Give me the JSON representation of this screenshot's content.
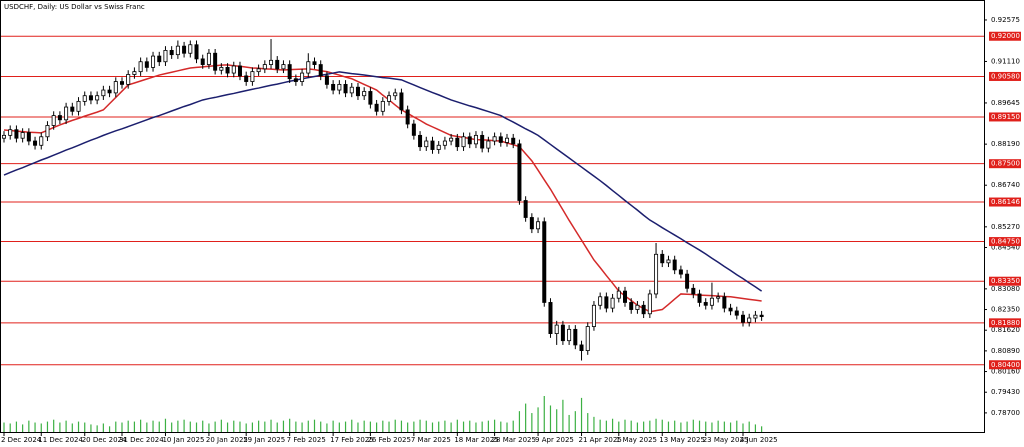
{
  "chart_data": {
    "type": "candlestick",
    "title": "USDCHF, Daily:  US Dollar vs Swiss Franc",
    "up_color": "#ffffff",
    "down_color": "#000000",
    "ylim": [
      0.7799,
      0.9328
    ],
    "yticks": [
      0.92575,
      {
        "value": 0.9111,
        "label": "0.91110"
      },
      0.89645,
      {
        "value": 0.8819,
        "label": "0.88190"
      },
      {
        "value": 0.8674,
        "label": "0.86740"
      },
      {
        "value": 0.8527,
        "label": "0.85270"
      },
      {
        "value": 0.8454,
        "label": "0.84540"
      },
      {
        "value": 0.8308,
        "label": "0.83080"
      },
      {
        "value": 0.8235,
        "label": "0.82350"
      },
      {
        "value": 0.8162,
        "label": "0.81620"
      },
      {
        "value": 0.8089,
        "label": "0.80890"
      },
      {
        "value": 0.8016,
        "label": "0.80160"
      },
      {
        "value": 0.7943,
        "label": "0.79430"
      },
      {
        "value": 0.787,
        "label": "0.78700"
      }
    ],
    "levels": {
      "color": "#e0201b",
      "values": [
        {
          "value": 0.92,
          "label": "0.92000"
        },
        {
          "value": 0.9058,
          "label": "0.90580"
        },
        {
          "value": 0.8915,
          "label": "0.89150"
        },
        {
          "value": 0.875,
          "label": "0.87500"
        },
        {
          "value": 0.86146,
          "label": "0.86146"
        },
        {
          "value": 0.8475,
          "label": "0.84750"
        },
        {
          "value": 0.8335,
          "label": "0.83350"
        },
        {
          "value": 0.8188,
          "label": "0.81880"
        },
        {
          "value": 0.804,
          "label": "0.80400"
        }
      ]
    },
    "categories": [
      "2 Dec 2024",
      null,
      null,
      null,
      null,
      null,
      "11 Dec 2024",
      null,
      null,
      null,
      null,
      null,
      null,
      "20 Dec 2024",
      null,
      null,
      null,
      null,
      null,
      "31 Dec 2024",
      null,
      null,
      null,
      null,
      null,
      null,
      "10 Jan 2025",
      null,
      null,
      null,
      null,
      null,
      null,
      "20 Jan 2025",
      null,
      null,
      null,
      null,
      null,
      "29 Jan 2025",
      null,
      null,
      null,
      null,
      null,
      null,
      "7 Feb 2025",
      null,
      null,
      null,
      null,
      null,
      null,
      "17 Feb 2025",
      null,
      null,
      null,
      null,
      null,
      "26 Feb 2025",
      null,
      null,
      null,
      null,
      null,
      null,
      "7 Mar 2025",
      null,
      null,
      null,
      null,
      null,
      null,
      "18 Mar 2025",
      null,
      null,
      null,
      null,
      null,
      "28 Mar 2025",
      null,
      null,
      null,
      null,
      null,
      null,
      "9 Apr 2025",
      null,
      null,
      null,
      null,
      null,
      null,
      "21 Apr 2025",
      null,
      null,
      null,
      null,
      null,
      "1 May 2025",
      null,
      null,
      null,
      null,
      null,
      null,
      "13 May 2025",
      null,
      null,
      null,
      null,
      null,
      null,
      "23 May 2025",
      null,
      null,
      null,
      null,
      null,
      "4 Jun 2025",
      null,
      null,
      null
    ],
    "open": [
      0.884,
      0.885,
      0.887,
      0.884,
      0.886,
      0.883,
      0.8815,
      0.8845,
      0.8885,
      0.892,
      0.8905,
      0.895,
      0.8935,
      0.897,
      0.899,
      0.8975,
      0.899,
      0.901,
      0.9,
      0.904,
      0.903,
      0.9065,
      0.9075,
      0.911,
      0.909,
      0.913,
      0.911,
      0.915,
      0.9135,
      0.9165,
      0.914,
      0.917,
      0.912,
      0.91,
      0.914,
      0.908,
      0.909,
      0.907,
      0.9095,
      0.906,
      0.904,
      0.9075,
      0.9085,
      0.91,
      0.9115,
      0.9085,
      0.91,
      0.905,
      0.904,
      0.907,
      0.911,
      0.91,
      0.906,
      0.903,
      0.901,
      0.903,
      0.9,
      0.902,
      0.899,
      0.9005,
      0.896,
      0.8935,
      0.897,
      0.899,
      0.9,
      0.894,
      0.889,
      0.885,
      0.881,
      0.883,
      0.88,
      0.8815,
      0.883,
      0.884,
      0.881,
      0.8845,
      0.882,
      0.885,
      0.8805,
      0.883,
      0.8845,
      0.8825,
      0.884,
      0.882,
      0.862,
      0.856,
      0.852,
      0.8545,
      0.826,
      0.815,
      0.818,
      0.8125,
      0.8165,
      0.811,
      0.809,
      0.8175,
      0.825,
      0.828,
      0.824,
      0.8275,
      0.83,
      0.826,
      0.8235,
      0.825,
      0.822,
      0.829,
      0.843,
      0.84,
      0.841,
      0.8375,
      0.836,
      0.831,
      0.829,
      0.826,
      0.825,
      0.8275,
      0.828,
      0.824,
      0.823,
      0.8215,
      0.819,
      0.8205,
      0.8215
    ],
    "high": [
      0.8865,
      0.8885,
      0.8885,
      0.8875,
      0.8875,
      0.8845,
      0.886,
      0.89,
      0.8935,
      0.8935,
      0.8965,
      0.8965,
      0.8985,
      0.9005,
      0.9005,
      0.9005,
      0.9025,
      0.9025,
      0.9055,
      0.9055,
      0.908,
      0.909,
      0.9125,
      0.9125,
      0.9145,
      0.9145,
      0.9165,
      0.9165,
      0.9185,
      0.918,
      0.9185,
      0.9185,
      0.9135,
      0.9155,
      0.9155,
      0.9105,
      0.9105,
      0.911,
      0.911,
      0.9075,
      0.909,
      0.91,
      0.9115,
      0.919,
      0.913,
      0.9115,
      0.9115,
      0.9065,
      0.9085,
      0.914,
      0.9125,
      0.9115,
      0.9075,
      0.9045,
      0.9045,
      0.9045,
      0.9035,
      0.9035,
      0.902,
      0.902,
      0.8975,
      0.8985,
      0.9005,
      0.9015,
      0.9015,
      0.8955,
      0.8905,
      0.8865,
      0.8845,
      0.8845,
      0.883,
      0.8845,
      0.8855,
      0.8855,
      0.886,
      0.886,
      0.8865,
      0.8865,
      0.8845,
      0.886,
      0.886,
      0.8855,
      0.8855,
      0.8835,
      0.8635,
      0.8575,
      0.856,
      0.856,
      0.8275,
      0.8195,
      0.8195,
      0.818,
      0.818,
      0.8125,
      0.819,
      0.8265,
      0.8295,
      0.8295,
      0.829,
      0.8315,
      0.8315,
      0.8275,
      0.8265,
      0.8265,
      0.8305,
      0.847,
      0.8445,
      0.8425,
      0.8425,
      0.839,
      0.8375,
      0.8325,
      0.8305,
      0.8275,
      0.833,
      0.8295,
      0.8295,
      0.8255,
      0.8245,
      0.823,
      0.822,
      0.823,
      0.823
    ],
    "low": [
      0.8825,
      0.8835,
      0.8825,
      0.8825,
      0.8815,
      0.88,
      0.88,
      0.883,
      0.887,
      0.889,
      0.889,
      0.892,
      0.892,
      0.8955,
      0.896,
      0.896,
      0.8975,
      0.8985,
      0.8985,
      0.9015,
      0.9015,
      0.905,
      0.906,
      0.9075,
      0.9075,
      0.9095,
      0.9095,
      0.912,
      0.912,
      0.9125,
      0.9125,
      0.9105,
      0.9085,
      0.9085,
      0.9065,
      0.9065,
      0.9055,
      0.9055,
      0.9045,
      0.9025,
      0.9025,
      0.906,
      0.907,
      0.9085,
      0.907,
      0.907,
      0.9035,
      0.9025,
      0.9025,
      0.9055,
      0.9085,
      0.9045,
      0.9015,
      0.8995,
      0.8995,
      0.8985,
      0.8985,
      0.8975,
      0.8975,
      0.8945,
      0.892,
      0.892,
      0.8955,
      0.8975,
      0.8925,
      0.8875,
      0.8835,
      0.8795,
      0.8795,
      0.8785,
      0.8785,
      0.88,
      0.8815,
      0.8795,
      0.8795,
      0.8805,
      0.8805,
      0.879,
      0.879,
      0.8815,
      0.881,
      0.881,
      0.8805,
      0.8605,
      0.8545,
      0.8505,
      0.8505,
      0.8245,
      0.8135,
      0.811,
      0.811,
      0.811,
      0.8095,
      0.8055,
      0.8075,
      0.816,
      0.8235,
      0.8225,
      0.8225,
      0.826,
      0.8245,
      0.822,
      0.822,
      0.8205,
      0.8205,
      0.8275,
      0.8385,
      0.8385,
      0.836,
      0.8345,
      0.8295,
      0.8275,
      0.8245,
      0.8235,
      0.8235,
      0.826,
      0.8225,
      0.8215,
      0.82,
      0.8175,
      0.8175,
      0.819,
      0.8195
    ],
    "close": [
      0.885,
      0.887,
      0.884,
      0.886,
      0.883,
      0.8815,
      0.8845,
      0.8885,
      0.892,
      0.8905,
      0.895,
      0.8935,
      0.897,
      0.899,
      0.8975,
      0.899,
      0.901,
      0.9,
      0.904,
      0.903,
      0.9065,
      0.9075,
      0.911,
      0.909,
      0.913,
      0.911,
      0.915,
      0.9135,
      0.9165,
      0.914,
      0.917,
      0.912,
      0.91,
      0.914,
      0.908,
      0.909,
      0.907,
      0.9095,
      0.906,
      0.904,
      0.9075,
      0.9085,
      0.91,
      0.9115,
      0.9085,
      0.91,
      0.905,
      0.904,
      0.907,
      0.911,
      0.91,
      0.906,
      0.903,
      0.901,
      0.903,
      0.9,
      0.902,
      0.899,
      0.9005,
      0.896,
      0.8935,
      0.897,
      0.899,
      0.9,
      0.894,
      0.889,
      0.885,
      0.881,
      0.883,
      0.88,
      0.8815,
      0.883,
      0.884,
      0.881,
      0.8845,
      0.882,
      0.885,
      0.8805,
      0.883,
      0.8845,
      0.8825,
      0.884,
      0.882,
      0.862,
      0.856,
      0.852,
      0.8545,
      0.826,
      0.815,
      0.818,
      0.8125,
      0.8165,
      0.811,
      0.809,
      0.8175,
      0.825,
      0.828,
      0.824,
      0.8275,
      0.83,
      0.826,
      0.8235,
      0.825,
      0.822,
      0.829,
      0.843,
      0.84,
      0.841,
      0.8375,
      0.836,
      0.831,
      0.829,
      0.826,
      0.825,
      0.8275,
      0.828,
      0.824,
      0.823,
      0.8215,
      0.819,
      0.8205,
      0.8215,
      0.821
    ],
    "lines": [
      {
        "color": "#d42a2a",
        "values": [
          0.8869,
          0.8867,
          0.8865,
          0.8863,
          0.8861,
          0.886,
          0.8859,
          0.8868,
          0.8878,
          0.8887,
          0.8895,
          0.8903,
          0.891,
          0.8918,
          0.8925,
          0.8932,
          0.894,
          0.8962,
          0.8984,
          0.9006,
          0.9028,
          0.9035,
          0.9042,
          0.9049,
          0.9056,
          0.9063,
          0.9068,
          0.9073,
          0.9078,
          0.9083,
          0.9088,
          0.909,
          0.9092,
          0.9094,
          0.9096,
          0.9098,
          0.9099,
          0.9096,
          0.9094,
          0.9091,
          0.9088,
          0.9087,
          0.9085,
          0.9084,
          0.9082,
          0.9081,
          0.9082,
          0.9083,
          0.9084,
          0.9085,
          0.9082,
          0.9078,
          0.9075,
          0.9069,
          0.9063,
          0.9056,
          0.905,
          0.904,
          0.903,
          0.902,
          0.901,
          0.8992,
          0.8975,
          0.8957,
          0.894,
          0.8928,
          0.8915,
          0.8903,
          0.889,
          0.888,
          0.887,
          0.886,
          0.885,
          0.8846,
          0.8843,
          0.8839,
          0.8835,
          0.8834,
          0.8833,
          0.8831,
          0.883,
          0.8823,
          0.8817,
          0.881,
          0.8785,
          0.876,
          0.8727,
          0.8693,
          0.866,
          0.8623,
          0.8587,
          0.855,
          0.8515,
          0.848,
          0.8445,
          0.841,
          0.8383,
          0.8355,
          0.8328,
          0.83,
          0.8283,
          0.8267,
          0.825,
          0.8239,
          0.8227,
          0.8231,
          0.8235,
          0.8253,
          0.8272,
          0.829,
          0.8289,
          0.8288,
          0.8286,
          0.8285,
          0.8284,
          0.8283,
          0.8281,
          0.828,
          0.8277,
          0.8274,
          0.8271,
          0.8268,
          0.8265
        ]
      },
      {
        "color": "#1c1f6e",
        "values": [
          0.871,
          0.8719,
          0.8728,
          0.8736,
          0.8745,
          0.8754,
          0.8763,
          0.8771,
          0.878,
          0.8789,
          0.8798,
          0.8806,
          0.8815,
          0.8824,
          0.8833,
          0.8841,
          0.885,
          0.8858,
          0.8866,
          0.8873,
          0.8881,
          0.8889,
          0.8897,
          0.8905,
          0.8913,
          0.892,
          0.8928,
          0.8936,
          0.8944,
          0.8952,
          0.8959,
          0.8967,
          0.8975,
          0.898,
          0.8984,
          0.8989,
          0.8994,
          0.8998,
          0.9003,
          0.9008,
          0.9013,
          0.9017,
          0.9022,
          0.9027,
          0.9031,
          0.9036,
          0.9041,
          0.9045,
          0.905,
          0.9054,
          0.9058,
          0.9062,
          0.9066,
          0.907,
          0.9074,
          0.9071,
          0.9068,
          0.9066,
          0.9063,
          0.906,
          0.9057,
          0.9054,
          0.9052,
          0.9049,
          0.9046,
          0.9037,
          0.9028,
          0.9019,
          0.901,
          0.9001,
          0.8993,
          0.8984,
          0.8975,
          0.8968,
          0.8961,
          0.8954,
          0.8948,
          0.8941,
          0.8934,
          0.8927,
          0.892,
          0.8908,
          0.8897,
          0.8885,
          0.8873,
          0.8862,
          0.885,
          0.8834,
          0.8818,
          0.8802,
          0.8786,
          0.877,
          0.8754,
          0.8738,
          0.8722,
          0.8706,
          0.869,
          0.8673,
          0.8655,
          0.8638,
          0.862,
          0.8603,
          0.8586,
          0.8568,
          0.8551,
          0.8538,
          0.8524,
          0.8511,
          0.8498,
          0.8485,
          0.8471,
          0.8458,
          0.8445,
          0.8431,
          0.8416,
          0.8402,
          0.8387,
          0.8373,
          0.8358,
          0.8344,
          0.8329,
          0.8315,
          0.83
        ]
      }
    ],
    "volume": {
      "color": "#3cb043",
      "values": [
        10,
        9,
        11,
        8,
        12,
        10,
        9,
        11,
        13,
        10,
        12,
        9,
        11,
        10,
        8,
        7,
        9,
        6,
        11,
        10,
        12,
        11,
        13,
        10,
        12,
        11,
        14,
        10,
        12,
        13,
        11,
        10,
        12,
        9,
        11,
        13,
        10,
        12,
        11,
        9,
        10,
        12,
        11,
        13,
        10,
        12,
        14,
        11,
        10,
        12,
        13,
        11,
        9,
        12,
        10,
        11,
        13,
        10,
        12,
        11,
        10,
        12,
        11,
        13,
        12,
        10,
        11,
        13,
        12,
        10,
        11,
        12,
        10,
        13,
        11,
        12,
        10,
        11,
        12,
        13,
        11,
        10,
        12,
        22,
        30,
        20,
        26,
        38,
        28,
        24,
        34,
        18,
        22,
        36,
        20,
        16,
        13,
        12,
        14,
        11,
        13,
        12,
        10,
        11,
        12,
        14,
        13,
        11,
        12,
        10,
        11,
        13,
        12,
        11,
        10,
        12,
        11,
        10,
        12,
        9,
        11,
        8,
        6
      ]
    }
  }
}
